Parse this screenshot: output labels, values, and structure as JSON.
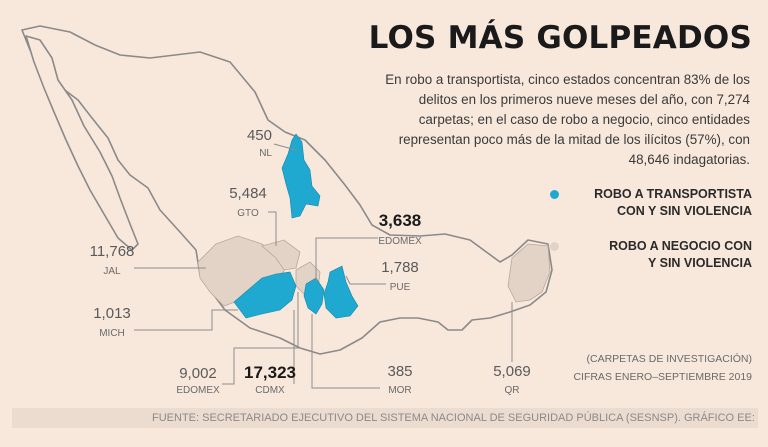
{
  "title": "LOS MÁS GOLPEADOS",
  "intro": "En robo a transportista, cinco estados concentran 83% de los delitos en los primeros nueve meses del año, con 7,274 carpetas; en el caso de robo a negocio, cinco entidades representan poco más de la mitad de los ilícitos (57%), con 48,646 indagatorias.",
  "colors": {
    "background": "#f8e8dc",
    "land": "#f8e8dc",
    "border": "#8a8a8a",
    "transportista": "#1fa9d1",
    "negocio": "#e3d3c7",
    "leader": "#8c8c8c"
  },
  "legend": {
    "transportista": {
      "label": "ROBO A TRANSPORTISTA CON Y SIN VIOLENCIA",
      "line1": "ROBO A TRANSPORTISTA",
      "line2": "CON Y SIN VIOLENCIA",
      "color": "#1fa9d1"
    },
    "negocio": {
      "label": "ROBO A NEGOCIO CON Y SIN VIOLENCIA",
      "line1": "ROBO A NEGOCIO CON",
      "line2": "Y SIN VIOLENCIA",
      "color": "#e3d3c7"
    }
  },
  "note": {
    "line1": "(CARPETAS DE INVESTIGACIÓN)",
    "line2": "CIFRAS ENERO–SEPTIEMBRE 2019"
  },
  "source": "FUENTE: SECRETARIADO EJECUTIVO DEL SISTEMA NACIONAL DE SEGURIDAD PÚBLICA (SESNSP). GRÁFICO EE: STAFF.",
  "callouts": [
    {
      "id": "nl",
      "value": "450",
      "state": "NL",
      "category": "transportista",
      "bold": false
    },
    {
      "id": "gto",
      "value": "5,484",
      "state": "GTO",
      "category": "negocio",
      "bold": false
    },
    {
      "id": "edomex-t",
      "value": "3,638",
      "state": "EDOMEX",
      "category": "transportista",
      "bold": true
    },
    {
      "id": "pue",
      "value": "1,788",
      "state": "PUE",
      "category": "transportista",
      "bold": false
    },
    {
      "id": "jal",
      "value": "11,768",
      "state": "JAL",
      "category": "negocio",
      "bold": false
    },
    {
      "id": "mich",
      "value": "1,013",
      "state": "MICH",
      "category": "transportista",
      "bold": false
    },
    {
      "id": "edomex-n",
      "value": "9,002",
      "state": "EDOMEX",
      "category": "negocio",
      "bold": false
    },
    {
      "id": "cdmx",
      "value": "17,323",
      "state": "CDMX",
      "category": "negocio",
      "bold": true
    },
    {
      "id": "mor",
      "value": "385",
      "state": "MOR",
      "category": "transportista",
      "bold": false
    },
    {
      "id": "qr",
      "value": "5,069",
      "state": "QR",
      "category": "negocio",
      "bold": false
    }
  ]
}
